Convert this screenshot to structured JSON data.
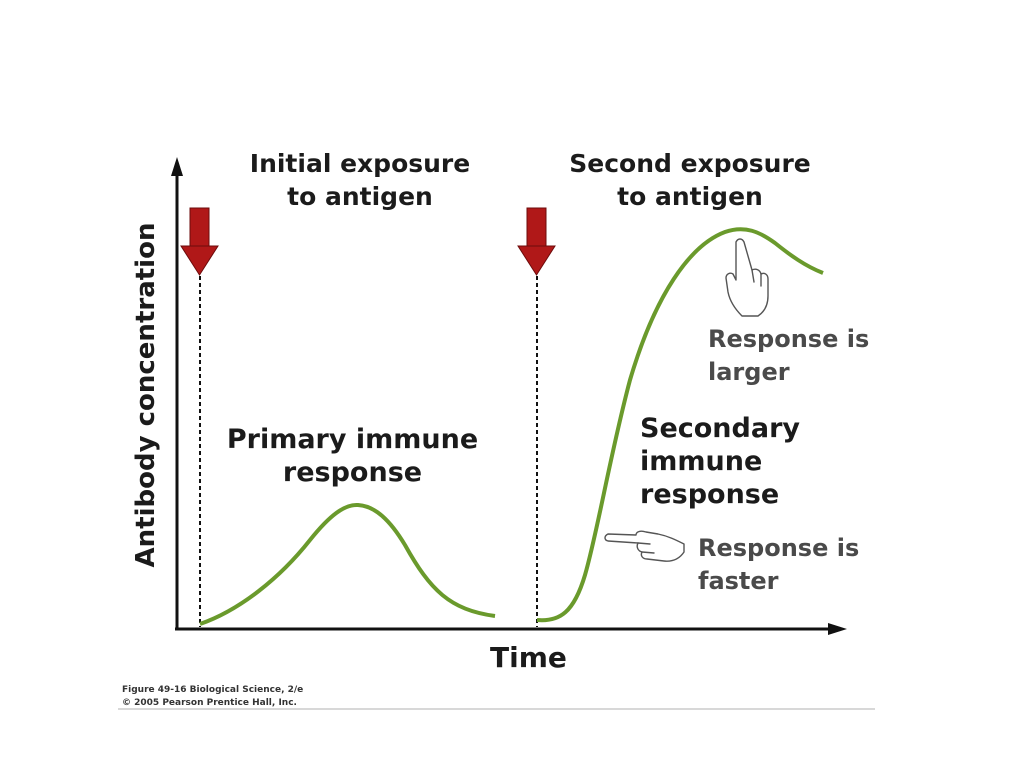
{
  "figure": {
    "y_axis_label": "Antibody concentration",
    "x_axis_label": "Time",
    "initial_exposure": [
      "Initial exposure",
      "to antigen"
    ],
    "second_exposure": [
      "Second exposure",
      "to antigen"
    ],
    "primary_response": [
      "Primary immune",
      "response"
    ],
    "secondary_response": [
      "Secondary",
      "immune",
      "response"
    ],
    "response_larger": [
      "Response is",
      "larger"
    ],
    "response_faster": [
      "Response is",
      "faster"
    ],
    "credit_line1": "Figure 49-16  Biological Science, 2/e",
    "credit_line2": "© 2005 Pearson Prentice Hall, Inc."
  },
  "colors": {
    "curve": "#6a9a2c",
    "arrow": "#b01818",
    "axis": "#111111"
  }
}
